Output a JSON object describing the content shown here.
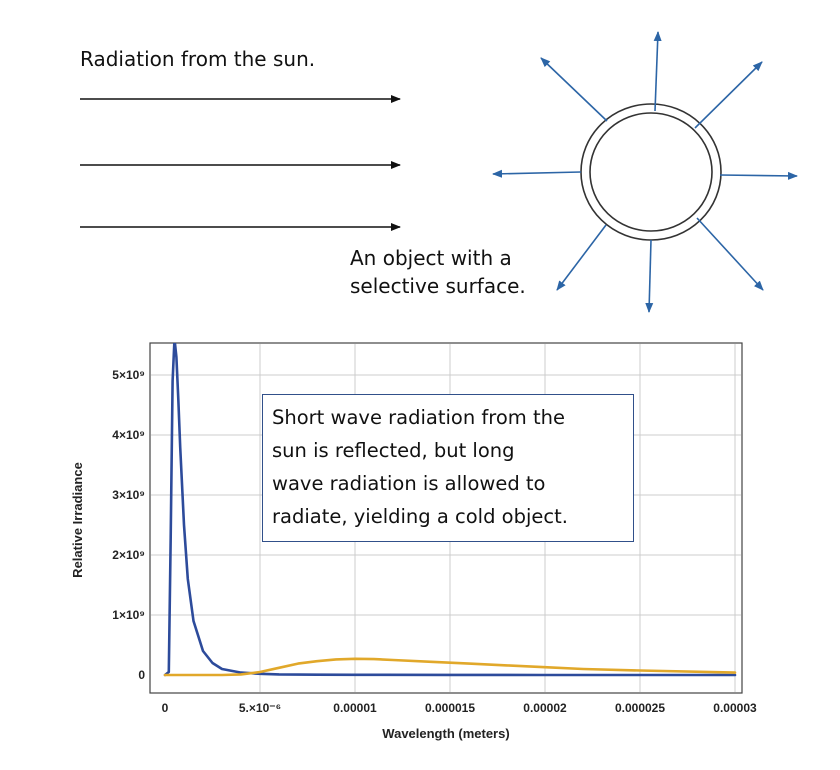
{
  "captions": {
    "sun_radiation": "Radiation from the sun.",
    "object_lines": [
      "An object with a",
      "selective surface."
    ]
  },
  "colors": {
    "incoming_arrow": "#111111",
    "emitted_arrow": "#2c65a6",
    "object_ring": "#333333",
    "sun_curve": "#2d4b9b",
    "object_curve": "#e1a82a",
    "annotation_border": "#31508a",
    "grid": "#cccccc"
  },
  "annotation": {
    "lines": [
      "Short wave radiation from the",
      "sun is reflected, but long",
      "wave radiation is allowed to",
      "radiate, yielding a cold object."
    ]
  },
  "chart_data": {
    "type": "line",
    "xlabel": "Wavelength (meters)",
    "ylabel": "Relative Irradiance",
    "xlim": [
      0,
      3e-05
    ],
    "ylim": [
      -250000000.0,
      5900000000.0
    ],
    "grid": true,
    "x_ticks": [
      {
        "value": 0,
        "label": "0"
      },
      {
        "value": 5e-06,
        "label": "5.×10⁻⁶"
      },
      {
        "value": 1e-05,
        "label": "0.00001"
      },
      {
        "value": 1.5e-05,
        "label": "0.000015"
      },
      {
        "value": 2e-05,
        "label": "0.00002"
      },
      {
        "value": 2.5e-05,
        "label": "0.000025"
      },
      {
        "value": 3e-05,
        "label": "0.00003"
      }
    ],
    "y_ticks": [
      {
        "value": 0,
        "label": "0"
      },
      {
        "value": 1000000000.0,
        "label": "1×10⁹"
      },
      {
        "value": 2000000000.0,
        "label": "2×10⁹"
      },
      {
        "value": 3000000000.0,
        "label": "3×10⁹"
      },
      {
        "value": 4000000000.0,
        "label": "4×10⁹"
      },
      {
        "value": 5000000000.0,
        "label": "5×10⁹"
      }
    ],
    "series": [
      {
        "color": "#2d4b9b",
        "x": [
          0,
          2e-07,
          3e-07,
          4e-07,
          5e-07,
          6e-07,
          7e-07,
          8e-07,
          1e-06,
          1.2e-06,
          1.5e-06,
          2e-06,
          2.5e-06,
          3e-06,
          4e-06,
          5e-06,
          6e-06,
          8e-06,
          1e-05,
          1.5e-05,
          2e-05,
          2.5e-05,
          3e-05
        ],
        "y": [
          0,
          50000000.0,
          2300000000.0,
          4900000000.0,
          5600000000.0,
          5300000000.0,
          4600000000.0,
          3800000000.0,
          2500000000.0,
          1600000000.0,
          900000000.0,
          400000000.0,
          200000000.0,
          100000000.0,
          40000000.0,
          20000000.0,
          10000000.0,
          5000000.0,
          3000000.0,
          1000000.0,
          0,
          0,
          0
        ]
      },
      {
        "color": "#e1a82a",
        "x": [
          0,
          3e-06,
          4e-06,
          5e-06,
          6e-06,
          7e-06,
          8e-06,
          9e-06,
          1e-05,
          1.1e-05,
          1.2e-05,
          1.4e-05,
          1.6e-05,
          1.8e-05,
          2e-05,
          2.2e-05,
          2.5e-05,
          3e-05
        ],
        "y": [
          0,
          0,
          10000000.0,
          50000000.0,
          120000000.0,
          190000000.0,
          230000000.0,
          260000000.0,
          270000000.0,
          265000000.0,
          250000000.0,
          220000000.0,
          190000000.0,
          160000000.0,
          130000000.0,
          100000000.0,
          75000000.0,
          40000000.0
        ]
      }
    ]
  }
}
